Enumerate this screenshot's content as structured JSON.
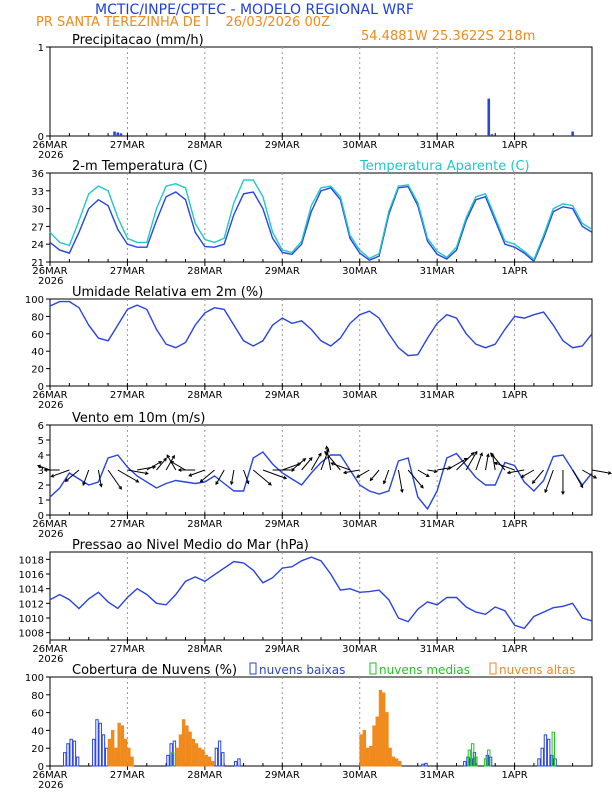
{
  "header": {
    "title": "MCTIC/INPE/CPTEC - MODELO REGIONAL WRF",
    "station_line": "PR SANTA TEREZINHA DE I    26/03/2026 00Z",
    "location": "54.4881W 25.3622S 218m"
  },
  "colors": {
    "title": "#1f3fd6",
    "station": "#f08a1c",
    "line_blue": "#2a44e0",
    "line_cyan": "#1fc8c8",
    "low_clouds": "#2a44e0",
    "mid_clouds": "#22c422",
    "high_clouds": "#f08a1c",
    "grid": "#999999"
  },
  "x_axis": {
    "hours_total": 168,
    "day_labels": [
      "26MAR",
      "27MAR",
      "28MAR",
      "29MAR",
      "30MAR",
      "31MAR",
      "1APR"
    ],
    "year_label": "2026"
  },
  "chart_data": [
    {
      "type": "bar",
      "title": "Precipitacao (mm/h)",
      "ylim": [
        0,
        1
      ],
      "yticks": [
        "0",
        "1"
      ],
      "bars": [
        {
          "x": 20,
          "y": 0.05
        },
        {
          "x": 21,
          "y": 0.04
        },
        {
          "x": 22,
          "y": 0.03
        },
        {
          "x": 136,
          "y": 0.42
        },
        {
          "x": 137,
          "y": 0.02
        },
        {
          "x": 162,
          "y": 0.05
        }
      ]
    },
    {
      "type": "line",
      "title": "2-m Temperatura (C)",
      "legend": "Temperatura Aparente (C)",
      "ylim": [
        21,
        36
      ],
      "yticks": [
        "21",
        "24",
        "27",
        "30",
        "33",
        "36"
      ],
      "series": [
        {
          "name": "Temperatura",
          "color_key": "line_blue",
          "x": [
            0,
            3,
            6,
            9,
            12,
            15,
            18,
            21,
            24,
            27,
            30,
            33,
            36,
            39,
            42,
            45,
            48,
            51,
            54,
            57,
            60,
            63,
            66,
            69,
            72,
            75,
            78,
            81,
            84,
            87,
            90,
            93,
            96,
            99,
            102,
            105,
            108,
            111,
            114,
            117,
            120,
            123,
            126,
            129,
            132,
            135,
            138,
            141,
            144,
            147,
            150,
            153,
            156,
            159,
            162,
            165,
            168
          ],
          "y": [
            24.3,
            23,
            22.5,
            26,
            30,
            31.5,
            30.5,
            26.5,
            24,
            23.5,
            23.5,
            28,
            32,
            32.8,
            31.5,
            26,
            23.6,
            23.5,
            24,
            29,
            32.5,
            32.8,
            30,
            25,
            22.6,
            22.3,
            24,
            29.5,
            33,
            33.5,
            31.5,
            25,
            22.5,
            21.3,
            22,
            29,
            33.5,
            33.7,
            30.5,
            24.5,
            22.3,
            21.5,
            23,
            28,
            31.5,
            32,
            28,
            24,
            23.5,
            22.5,
            21.1,
            25,
            29.5,
            30.3,
            30,
            27,
            26
          ]
        },
        {
          "name": "Temperatura Aparente",
          "color_key": "line_cyan",
          "x": [
            0,
            3,
            6,
            9,
            12,
            15,
            18,
            21,
            24,
            27,
            30,
            33,
            36,
            39,
            42,
            45,
            48,
            51,
            54,
            57,
            60,
            63,
            66,
            69,
            72,
            75,
            78,
            81,
            84,
            87,
            90,
            93,
            96,
            99,
            102,
            105,
            108,
            111,
            114,
            117,
            120,
            123,
            126,
            129,
            132,
            135,
            138,
            141,
            144,
            147,
            150,
            153,
            156,
            159,
            162,
            165,
            168
          ],
          "y": [
            26,
            24.3,
            23.8,
            28,
            32.5,
            33.8,
            33,
            28.5,
            25,
            24.3,
            24.3,
            30,
            33.8,
            34.2,
            33.5,
            27.5,
            24.8,
            24.3,
            25,
            31,
            34.8,
            34.8,
            32,
            26,
            23,
            22.6,
            24.5,
            30.5,
            33.5,
            33.8,
            32,
            25.5,
            23,
            21.6,
            22.4,
            29.5,
            33.8,
            34,
            31,
            25,
            22.8,
            21.8,
            23.5,
            28.5,
            32,
            32.5,
            28.5,
            24.5,
            24,
            22.8,
            21.4,
            25.5,
            30,
            30.8,
            30.5,
            27.5,
            26.5
          ]
        }
      ]
    },
    {
      "type": "line",
      "title": "Umidade Relativa em 2m (%)",
      "ylim": [
        0,
        100
      ],
      "yticks": [
        "0",
        "20",
        "40",
        "60",
        "80",
        "100"
      ],
      "series": [
        {
          "name": "Umidade Relativa",
          "color_key": "line_blue",
          "x": [
            0,
            3,
            6,
            9,
            12,
            15,
            18,
            21,
            24,
            27,
            30,
            33,
            36,
            39,
            42,
            45,
            48,
            51,
            54,
            57,
            60,
            63,
            66,
            69,
            72,
            75,
            78,
            81,
            84,
            87,
            90,
            93,
            96,
            99,
            102,
            105,
            108,
            111,
            114,
            117,
            120,
            123,
            126,
            129,
            132,
            135,
            138,
            141,
            144,
            147,
            150,
            153,
            156,
            159,
            162,
            165,
            168
          ],
          "y": [
            92,
            97,
            97,
            90,
            70,
            55,
            52,
            70,
            88,
            93,
            88,
            65,
            48,
            44,
            50,
            70,
            84,
            90,
            88,
            70,
            52,
            46,
            52,
            70,
            78,
            72,
            75,
            65,
            52,
            46,
            55,
            72,
            82,
            86,
            78,
            60,
            44,
            35,
            36,
            55,
            72,
            82,
            78,
            60,
            48,
            44,
            48,
            65,
            80,
            78,
            82,
            85,
            70,
            52,
            44,
            46,
            60
          ]
        }
      ]
    },
    {
      "type": "line",
      "title": "Vento em 10m (m/s)",
      "ylim": [
        0,
        6
      ],
      "yticks": [
        "0",
        "1",
        "2",
        "3",
        "4",
        "5",
        "6"
      ],
      "series": [
        {
          "name": "Velocidade do vento",
          "color_key": "line_blue",
          "x": [
            0,
            3,
            6,
            9,
            12,
            15,
            18,
            21,
            24,
            27,
            30,
            33,
            36,
            39,
            42,
            45,
            48,
            51,
            54,
            57,
            60,
            63,
            66,
            69,
            72,
            75,
            78,
            81,
            84,
            87,
            90,
            93,
            96,
            99,
            102,
            105,
            108,
            111,
            114,
            117,
            120,
            123,
            126,
            129,
            132,
            135,
            138,
            141,
            144,
            147,
            150,
            153,
            156,
            159,
            162,
            165,
            168
          ],
          "y": [
            1.2,
            1.8,
            2.8,
            2.4,
            2.0,
            2.2,
            3.8,
            4.0,
            3.2,
            2.6,
            2.2,
            1.8,
            2.1,
            2.3,
            2.2,
            2.1,
            2.2,
            2.6,
            2.1,
            1.6,
            1.6,
            3.8,
            4.2,
            3.4,
            2.8,
            2.4,
            2.0,
            2.8,
            3.5,
            4.0,
            4.0,
            3.0,
            2.0,
            1.6,
            1.4,
            1.6,
            3.6,
            3.8,
            1.2,
            0.4,
            1.6,
            3.8,
            4.1,
            3.3,
            2.5,
            2.0,
            2.0,
            3.5,
            3.3,
            2.2,
            1.6,
            2.3,
            3.9,
            4.0,
            3.0,
            2.0,
            2.8
          ]
        },
        {
          "name": "Direcao do vento (graus)",
          "role": "arrows",
          "x": [
            0,
            3,
            6,
            9,
            12,
            15,
            18,
            21,
            24,
            27,
            30,
            33,
            36,
            39,
            42,
            45,
            48,
            51,
            54,
            57,
            60,
            63,
            66,
            69,
            72,
            75,
            78,
            81,
            84,
            87,
            90,
            93,
            96,
            99,
            102,
            105,
            108,
            111,
            114,
            117,
            120,
            123,
            126,
            129,
            132,
            135,
            138,
            141,
            144,
            147,
            150,
            153,
            156,
            159,
            162,
            165,
            168
          ],
          "y": [
            290,
            270,
            250,
            230,
            200,
            170,
            145,
            120,
            100,
            80,
            60,
            40,
            30,
            330,
            300,
            270,
            250,
            230,
            210,
            190,
            160,
            130,
            110,
            90,
            70,
            50,
            40,
            30,
            20,
            350,
            320,
            290,
            260,
            240,
            220,
            200,
            170,
            140,
            120,
            100,
            80,
            60,
            45,
            30,
            20,
            10,
            350,
            320,
            290,
            260,
            240,
            220,
            200,
            180,
            150,
            120,
            100
          ]
        }
      ]
    },
    {
      "type": "line",
      "title": "Pressao ao Nivel Medio do Mar (hPa)",
      "ylim": [
        1007,
        1019
      ],
      "yticks": [
        "1008",
        "1010",
        "1012",
        "1014",
        "1016",
        "1018"
      ],
      "series": [
        {
          "name": "Pressao",
          "color_key": "line_blue",
          "x": [
            0,
            3,
            6,
            9,
            12,
            15,
            18,
            21,
            24,
            27,
            30,
            33,
            36,
            39,
            42,
            45,
            48,
            51,
            54,
            57,
            60,
            63,
            66,
            69,
            72,
            75,
            78,
            81,
            84,
            87,
            90,
            93,
            96,
            99,
            102,
            105,
            108,
            111,
            114,
            117,
            120,
            123,
            126,
            129,
            132,
            135,
            138,
            141,
            144,
            147,
            150,
            153,
            156,
            159,
            162,
            165,
            168
          ],
          "y": [
            1012.5,
            1013.2,
            1012.5,
            1011.3,
            1012.6,
            1013.5,
            1012.2,
            1011.3,
            1012.8,
            1014,
            1013.2,
            1012,
            1011.8,
            1013.2,
            1015,
            1015.6,
            1015,
            1015.9,
            1016.8,
            1017.7,
            1017.5,
            1016.5,
            1014.8,
            1015.5,
            1016.8,
            1017,
            1017.8,
            1018.3,
            1017.8,
            1016,
            1013.8,
            1014,
            1013.5,
            1013.6,
            1013.8,
            1012.5,
            1010,
            1009.5,
            1011.2,
            1012.2,
            1011.8,
            1012.8,
            1012.8,
            1011.5,
            1010.8,
            1010.5,
            1011.5,
            1011,
            1009,
            1008.6,
            1010.2,
            1010.8,
            1011.4,
            1011.6,
            1012,
            1010,
            1009.6
          ]
        }
      ]
    },
    {
      "type": "bar",
      "title": "Cobertura de Nuvens (%)",
      "ylim": [
        0,
        100
      ],
      "yticks": [
        "0",
        "20",
        "40",
        "60",
        "80",
        "100"
      ],
      "legend": [
        "nuvens baixas",
        "nuvens medias",
        "nuvens altas"
      ],
      "series": [
        {
          "name": "nuvens baixas",
          "color_key": "low_clouds",
          "x": [
            5,
            6,
            7,
            8,
            9,
            14,
            15,
            16,
            17,
            18,
            19,
            37,
            38,
            39,
            40,
            52,
            53,
            54,
            58,
            59,
            99,
            100,
            102,
            103,
            116,
            117,
            129,
            130,
            131,
            132,
            136,
            137,
            152,
            153,
            154,
            155,
            156,
            157
          ],
          "y": [
            15,
            25,
            30,
            28,
            10,
            30,
            52,
            48,
            35,
            20,
            8,
            12,
            25,
            28,
            10,
            20,
            28,
            15,
            5,
            8,
            2,
            2,
            3,
            2,
            2,
            3,
            5,
            10,
            8,
            15,
            12,
            10,
            8,
            20,
            35,
            30,
            12,
            8
          ]
        },
        {
          "name": "nuvens medias",
          "color_key": "mid_clouds",
          "x": [
            38,
            40,
            130,
            131,
            132,
            135,
            136,
            156
          ],
          "y": [
            15,
            10,
            18,
            25,
            10,
            8,
            18,
            38
          ]
        },
        {
          "name": "nuvens altas",
          "color_key": "high_clouds",
          "x": [
            18,
            19,
            20,
            21,
            22,
            23,
            24,
            25,
            39,
            40,
            41,
            42,
            43,
            44,
            45,
            46,
            47,
            48,
            49,
            50,
            96,
            97,
            98,
            99,
            100,
            101,
            102,
            103,
            104,
            105,
            106,
            107,
            108
          ],
          "y": [
            30,
            40,
            20,
            48,
            45,
            30,
            20,
            10,
            20,
            35,
            52,
            45,
            38,
            30,
            25,
            20,
            18,
            12,
            10,
            5,
            35,
            40,
            20,
            22,
            45,
            55,
            85,
            82,
            60,
            20,
            10,
            8,
            5
          ]
        }
      ]
    }
  ]
}
